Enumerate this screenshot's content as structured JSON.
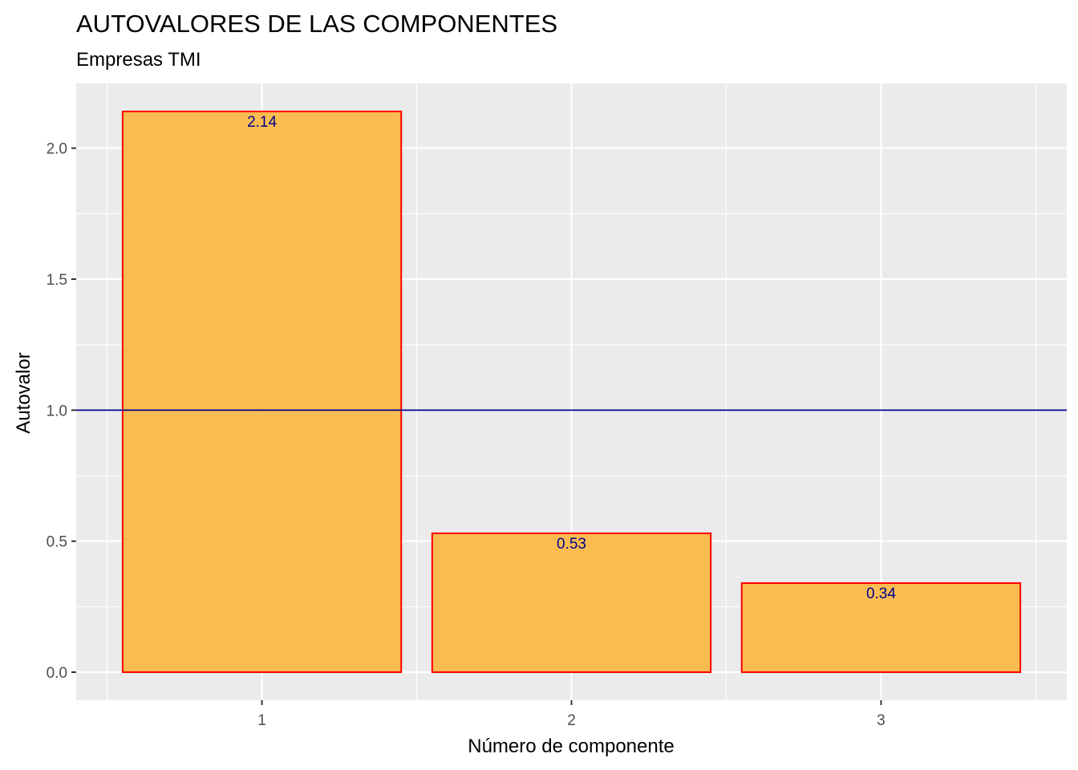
{
  "chart_data": {
    "type": "bar",
    "title": "AUTOVALORES DE LAS COMPONENTES",
    "subtitle": "Empresas TMI",
    "xlabel": "Número de componente",
    "ylabel": "Autovalor",
    "categories": [
      "1",
      "2",
      "3"
    ],
    "values": [
      2.14,
      0.53,
      0.34
    ],
    "data_labels": [
      "2.14",
      "0.53",
      "0.34"
    ],
    "ylim": [
      -0.107,
      2.247
    ],
    "yticks": [
      0.0,
      0.5,
      1.0,
      1.5,
      2.0
    ],
    "ytick_labels": [
      "0.0",
      "0.5",
      "1.0",
      "1.5",
      "2.0"
    ],
    "reference_line": {
      "y": 1.0,
      "color": "#00008b"
    },
    "grid": true,
    "legend": "none",
    "colors": {
      "panel_bg": "#ebebeb",
      "grid": "#ffffff",
      "bar_fill": "#fbb848",
      "bar_stroke": "#ff0000",
      "label_color": "#00008b",
      "tick_color": "#4d4d4d"
    }
  }
}
